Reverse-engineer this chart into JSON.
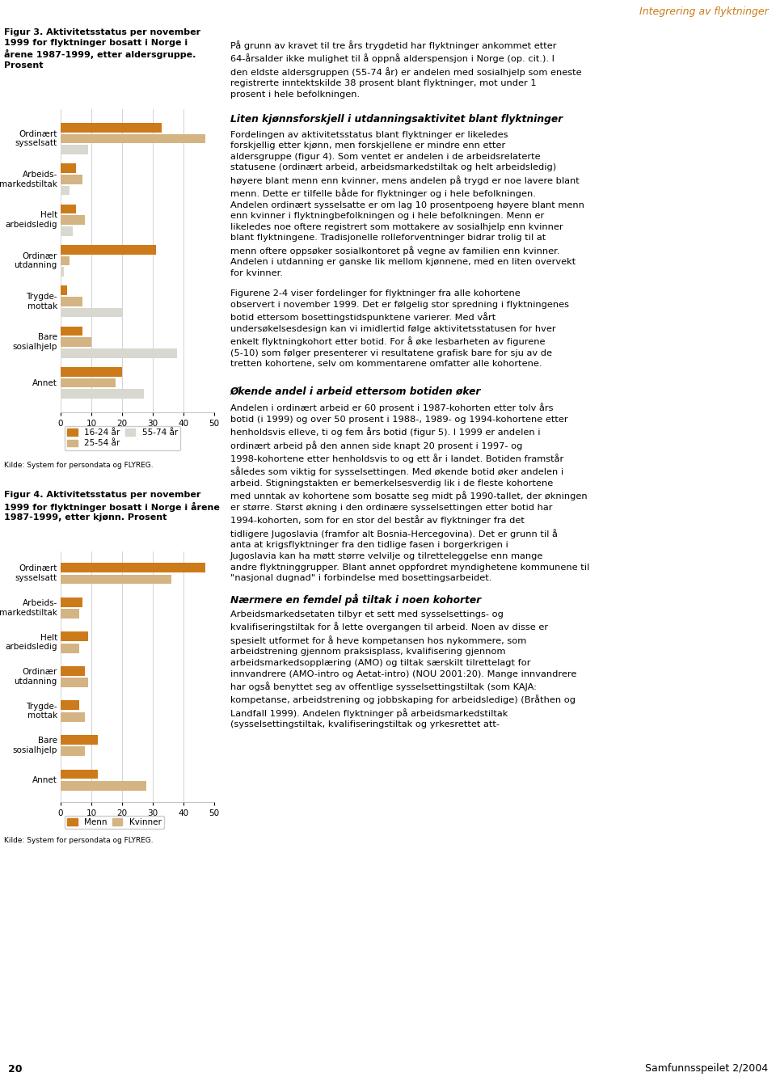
{
  "fig3_title": "Figur 3. Aktivitetsstatus per november\n1999 for flyktninger bosatt i Norge i\nårene 1987-1999, etter aldersgruppe.\nProsent",
  "fig4_title": "Figur 4. Aktivitetsstatus per november\n1999 for flyktninger bosatt i Norge i årene\n1987-1999, etter kjønn. Prosent",
  "categories": [
    "Ordinært\nsysselsatt",
    "Arbeids-\nmarkedstiltak",
    "Helt\narbeidsledig",
    "Ordinær\nutdanning",
    "Trygde-\nmottak",
    "Bare\nsosialhjelp",
    "Annet"
  ],
  "fig3_data": {
    "16-24 år": [
      33,
      5,
      5,
      31,
      2,
      7,
      20
    ],
    "25-54 år": [
      47,
      7,
      8,
      3,
      7,
      10,
      18
    ],
    "55-74 år": [
      9,
      3,
      4,
      1,
      20,
      38,
      27
    ]
  },
  "fig4_data": {
    "Menn": [
      47,
      7,
      9,
      8,
      6,
      12,
      12
    ],
    "Kvinner": [
      36,
      6,
      6,
      9,
      8,
      8,
      28
    ]
  },
  "fig3_colors": {
    "16-24 år": "#cc7a1a",
    "25-54 år": "#d4b483",
    "55-74 år": "#d8d8d0"
  },
  "fig4_colors": {
    "Menn": "#cc7a1a",
    "Kvinner": "#d4b483"
  },
  "xlabel": "Prosent",
  "fig3_xlim": [
    0,
    50
  ],
  "fig4_xlim": [
    0,
    50
  ],
  "fig3_xticks": [
    0,
    10,
    20,
    30,
    40,
    50
  ],
  "fig4_xticks": [
    0,
    10,
    20,
    30,
    40,
    50
  ],
  "source_text": "Kilde: System for persondata og FLYREG.",
  "grid_color": "#cccccc",
  "header_color": "#cc7a1a",
  "header_text": "Integrering av flyktninger",
  "page_text": "20",
  "page_right_text": "Samfunnsspeilet 2/2004",
  "right_col_para1": "På grunn av kravet til tre års trygdetid har flyktninger ankommet etter 64-årsalder ikke mulighet til å oppnå alderspensjon i Norge (op. cit.). I den eldste aldersgruppen (55-74 år) er andelen med sosialhjelp som eneste registrerte inntektskilde 38 prosent blant flyktninger, mot under 1 prosent i hele befolkningen.",
  "right_col_head1": "Liten kjønnsforskjell i utdanningsaktivitet blant flyktninger",
  "right_col_para2": "Fordelingen av aktivitetsstatus blant flyktninger er likeledes forskjellig etter kjønn, men forskjellene er mindre enn etter aldersgruppe (figur 4). Som ventet er andelen i de arbeidsrelaterte statusene (ordinært arbeid, arbeidsmarkedstiltak og helt arbeidsledig) høyere blant menn enn kvinner, mens andelen på trygd er noe lavere blant menn. Dette er tilfelle både for flyktninger og i hele befolkningen. Andelen ordinært sysselsatte er om lag 10 prosentpoeng høyere blant menn enn kvinner i flyktningbefolkningen og i hele befolkningen. Menn er likeledes noe oftere registrert som mottakere av sosialhjelp enn kvinner blant flyktningene. Tradisjonelle rolleforventninger bidrar trolig til at menn oftere oppsøker sosialkontoret på vegne av familien enn kvinner. Andelen i utdanning er ganske lik mellom kjønnene, med en liten overvekt for kvinner.",
  "right_col_para3": "Figurene 2-4 viser fordelinger for flyktninger fra alle kohortene observert i november 1999. Det er følgelig stor spredning i flyktningenes botid ettersom bosettingstidspunktene varierer. Med vårt undersøkelsesdesign kan vi imidlertid følge aktivitetsstatusen for hver enkelt flyktningkohort etter botid. For å øke lesbarheten av figurene (5-10) som følger presenterer vi resultatene grafisk bare for sju av de tretten kohortene, selv om kommentarene omfatter alle kohortene.",
  "right_col_head2": "Økende andel i arbeid ettersom botiden øker",
  "right_col_para4": "Andelen i ordinært arbeid er 60 prosent i 1987-kohorten etter tolv års botid (i 1999) og over 50 prosent i 1988-, 1989- og 1994-kohortene etter henholdsvis elleve, ti og fem års botid (figur 5). I 1999 er andelen i ordinært arbeid på den annen side knapt 20 prosent i 1997- og 1998-kohortene etter henholdsvis to og ett år i landet. Botiden framstår således som viktig for sysselsettingen. Med økende botid øker andelen i arbeid. Stigningstakten er bemerkelsesverdig lik i de fleste kohortene med unntak av kohortene som bosatte seg midt på 1990-tallet, der økningen er større. Størst økning i den ordinære sysselsettingen etter botid har 1994-kohorten, som for en stor del består av flyktninger fra det tidligere Jugoslavia (framfor alt Bosnia-Hercegovina). Det er grunn til å anta at krigsflyktninger fra den tidlige fasen i borgerkrigen i Jugoslavia kan ha møtt større velvilje og tilretteleggelse enn mange andre flyktninggrupper. Blant annet oppfordret myndighetene kommunene til \"nasjonal dugnad\" i forbindelse med bosettingsarbeidet.",
  "right_col_head3": "Nærmere en femdel på tiltak i noen kohorter",
  "right_col_para5": "Arbeidsmarkedsetaten tilbyr et sett med sysselsettings- og kvalifiseringstiltak for å lette overgangen til arbeid. Noen av disse er spesielt utformet for å heve kompetansen hos nykommere, som arbeidstrening gjennom praksisplass, kvalifisering gjennom arbeidsmarkedsopplæring (AMO) og tiltak særskilt tilrettelagt for innvandrere (AMO-intro og Aetat-intro) (NOU 2001:20). Mange innvandrere har også benyttet seg av offentlige sysselsettingstiltak (som KAJA: kompetanse, arbeidstrening og jobbskaping for arbeidsledige) (Bråthen og Landfall 1999). Andelen flyktninger på arbeidsmarkedstiltak (sysselsettingstiltak, kvalifiseringstiltak og yrkesrettet att-"
}
